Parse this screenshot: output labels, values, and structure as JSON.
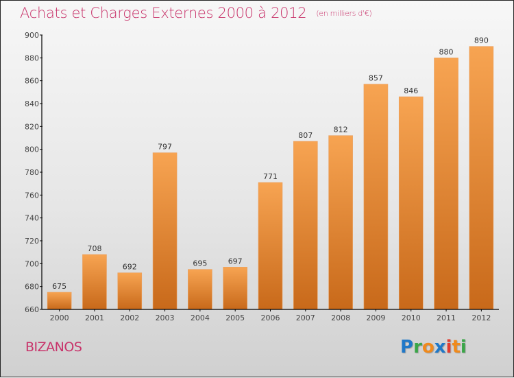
{
  "chart_data": {
    "type": "bar",
    "title": "Achats et Charges Externes 2000 à 2012",
    "subtitle": "(en milliers d'€)",
    "xlabel": "",
    "ylabel": "",
    "categories": [
      "2000",
      "2001",
      "2002",
      "2003",
      "2004",
      "2005",
      "2006",
      "2007",
      "2008",
      "2009",
      "2010",
      "2011",
      "2012"
    ],
    "values": [
      675,
      708,
      692,
      797,
      695,
      697,
      771,
      807,
      812,
      857,
      846,
      880,
      890
    ],
    "ylim": [
      660,
      900
    ],
    "yticks": [
      660,
      680,
      700,
      720,
      740,
      760,
      780,
      800,
      820,
      840,
      860,
      880,
      900
    ],
    "grid": false,
    "data_labels": true,
    "legend": "none",
    "colors": {
      "bar_top": "#f7a452",
      "bar_bottom": "#c8691a",
      "title": "#c8336a",
      "axis": "#000000"
    }
  },
  "location": "BIZANOS",
  "logo": {
    "letters": [
      {
        "ch": "P",
        "color": "#1f78c8"
      },
      {
        "ch": "r",
        "color": "#3aa648"
      },
      {
        "ch": "o",
        "color": "#f08a1c"
      },
      {
        "ch": "x",
        "color": "#1f78c8"
      },
      {
        "ch": "i",
        "color": "#e23b2e"
      },
      {
        "ch": "t",
        "color": "#f08a1c"
      },
      {
        "ch": "i",
        "color": "#3aa648"
      }
    ]
  }
}
